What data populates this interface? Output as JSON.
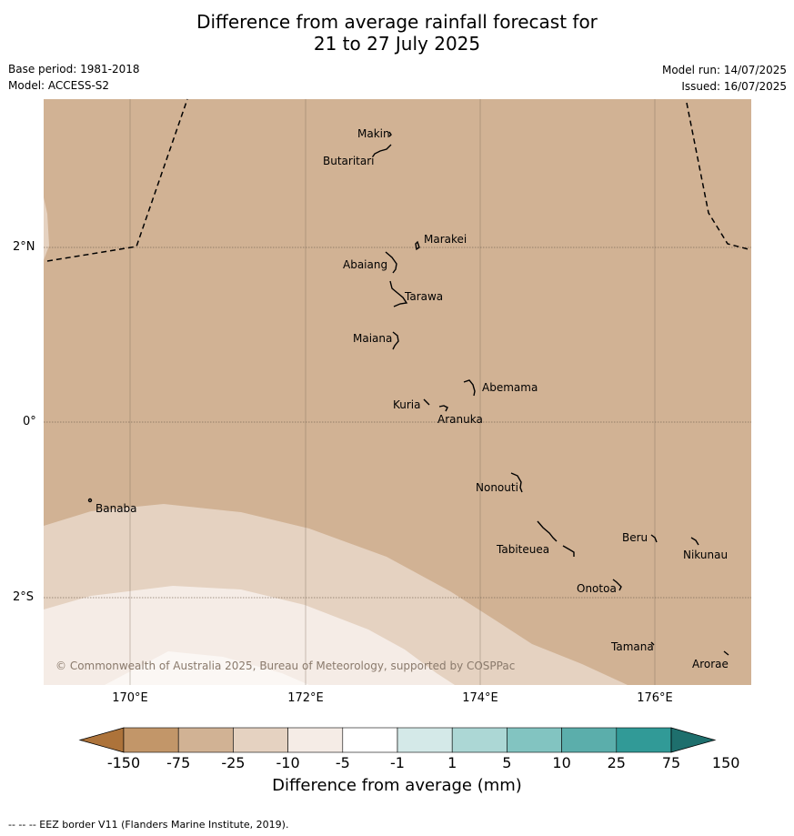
{
  "title_line1": "Difference from average rainfall forecast for",
  "title_line2": "21 to 27 July 2025",
  "meta": {
    "base_period": "Base period: 1981-2018",
    "model": "Model: ACCESS-S2",
    "model_run": "Model run: 14/07/2025",
    "issued": "Issued: 16/07/2025"
  },
  "map": {
    "lat_labels": [
      "2°N",
      "0°",
      "2°S"
    ],
    "lon_labels": [
      "170°E",
      "172°E",
      "174°E",
      "176°E"
    ],
    "copyright": "© Commonwealth of Australia 2025, Bureau of Meteorology, supported by COSPPac",
    "islands": [
      "Makin",
      "Butaritari",
      "Marakei",
      "Abaiang",
      "Tarawa",
      "Maiana",
      "Abemama",
      "Kuria",
      "Aranuka",
      "Nonouti",
      "Banaba",
      "Beru",
      "Tabiteuea",
      "Nikunau",
      "Onotoa",
      "Tamana",
      "Arorae"
    ],
    "background_category": "-25 to -10",
    "colors": {
      "dry_strong": "#d1b294",
      "dry_medium": "#e5d2c1",
      "dry_weak": "#f5ece6"
    }
  },
  "colorbar": {
    "title": "Difference from average (mm)",
    "ticks": [
      "-150",
      "-75",
      "-25",
      "-10",
      "-5",
      "-1",
      "1",
      "5",
      "10",
      "25",
      "75",
      "150"
    ],
    "colors": [
      "#ad733a",
      "#c29669",
      "#d1b294",
      "#e5d2c1",
      "#f5ece6",
      "#ffffff",
      "#d4e9e8",
      "#acd7d5",
      "#82c4c1",
      "#5baeab",
      "#319a97",
      "#1e6f6d"
    ]
  },
  "footnote": "-- -- -- EEZ border V11 (Flanders Marine Institute, 2019)."
}
